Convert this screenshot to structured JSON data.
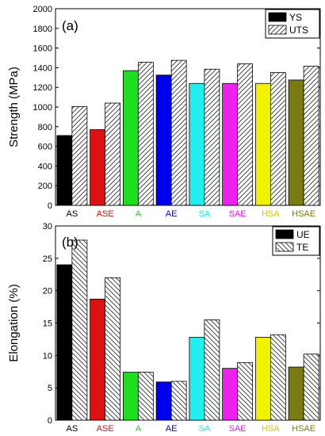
{
  "chart_data": [
    {
      "type": "bar",
      "panel_label": "(a)",
      "ylabel": "Strength (MPa)",
      "ylim": [
        0,
        2000
      ],
      "yticks": [
        0,
        200,
        400,
        600,
        800,
        1000,
        1200,
        1400,
        1600,
        1800,
        2000
      ],
      "categories": [
        "AS",
        "ASE",
        "A",
        "AE",
        "SA",
        "SAE",
        "HSA",
        "HSAE"
      ],
      "category_colors": [
        "#000000",
        "#dd1111",
        "#1fdd1f",
        "#0000ee",
        "#22eeee",
        "#ee22ee",
        "#f2f200",
        "#7a7a10"
      ],
      "series": [
        {
          "name": "YS",
          "style": "solid",
          "values": [
            710,
            770,
            1370,
            1325,
            1240,
            1240,
            1240,
            1275
          ]
        },
        {
          "name": "UTS",
          "style": "hatch",
          "values": [
            1005,
            1040,
            1455,
            1475,
            1385,
            1440,
            1350,
            1415
          ]
        }
      ],
      "legend_position": "top-right"
    },
    {
      "type": "bar",
      "panel_label": "(b)",
      "ylabel": "Elongation (%)",
      "ylim": [
        0,
        30
      ],
      "yticks": [
        0,
        5,
        10,
        15,
        20,
        25,
        30
      ],
      "categories": [
        "AS",
        "ASE",
        "A",
        "AE",
        "SA",
        "SAE",
        "HSA",
        "HSAE"
      ],
      "category_colors": [
        "#000000",
        "#dd1111",
        "#1fdd1f",
        "#0000ee",
        "#22eeee",
        "#ee22ee",
        "#f2f200",
        "#7a7a10"
      ],
      "series": [
        {
          "name": "UE",
          "style": "solid",
          "values": [
            24.0,
            18.7,
            7.4,
            5.9,
            12.8,
            8.0,
            12.8,
            8.2
          ]
        },
        {
          "name": "TE",
          "style": "hatch",
          "values": [
            27.8,
            22.0,
            7.4,
            6.0,
            15.5,
            8.9,
            13.2,
            10.2
          ]
        }
      ],
      "legend_position": "top-right"
    }
  ]
}
